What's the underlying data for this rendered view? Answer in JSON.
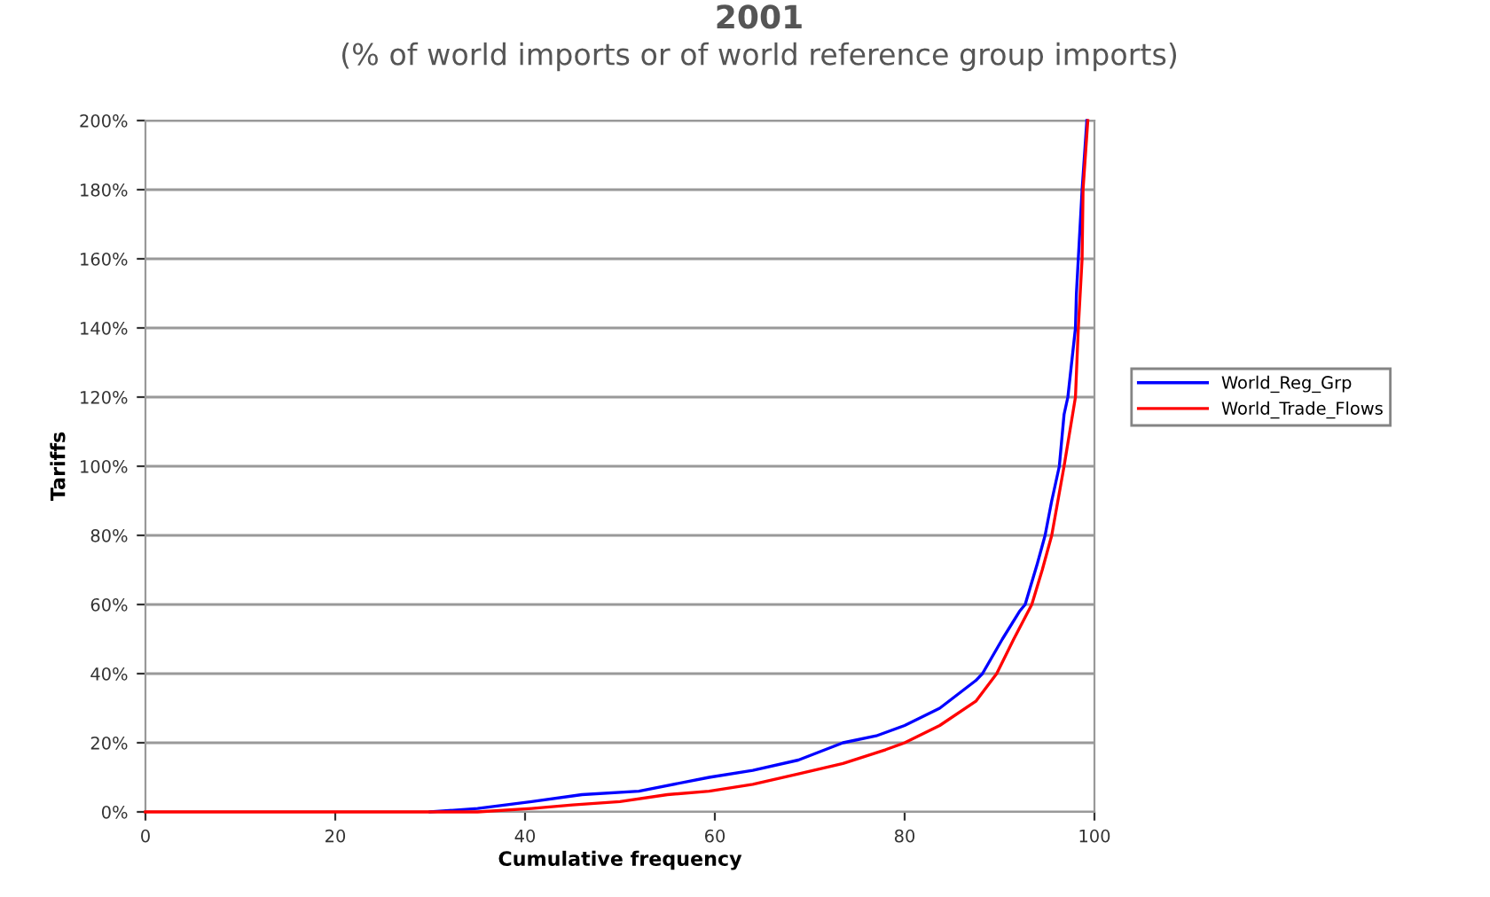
{
  "chart_data": {
    "type": "line",
    "title": "2001",
    "subtitle": "(% of world imports or of world reference group imports)",
    "xlabel": "Cumulative frequency",
    "ylabel": "Tariffs",
    "series": [
      {
        "name": "World_Reg_Grp",
        "color": "#0000ff",
        "x": [
          30,
          35,
          40.7,
          46,
          52,
          59.4,
          64,
          68.8,
          73.5,
          77,
          80,
          83.7,
          87.5,
          88.2,
          90.3,
          92.1,
          92.7,
          94,
          94.8,
          95.5,
          96.3,
          96.8,
          97.2,
          98,
          98.1,
          98.3,
          98.7,
          99.2
        ],
        "values": [
          0,
          1,
          3,
          5,
          6,
          10,
          12,
          15,
          20,
          22,
          25,
          30,
          38,
          40,
          50,
          58,
          60,
          72,
          80,
          90,
          100,
          115,
          120,
          140,
          150,
          160,
          180,
          200
        ]
      },
      {
        "name": "World_Trade_Flows",
        "color": "#ff0000",
        "x": [
          0,
          10,
          20,
          30,
          35,
          40.7,
          45,
          50,
          55,
          59.4,
          64,
          68.8,
          73.5,
          78,
          80,
          83.7,
          87.5,
          89.7,
          91.5,
          93.4,
          94.5,
          95.5,
          96.8,
          98,
          98.3,
          98.7,
          98.8,
          99.3
        ],
        "values": [
          0,
          0,
          0,
          0,
          0,
          1,
          2,
          3,
          5,
          6,
          8,
          11,
          14,
          18,
          20,
          25,
          32,
          40,
          50,
          60,
          70,
          80,
          100,
          120,
          140,
          160,
          180,
          200
        ]
      }
    ],
    "xlim": [
      0,
      100
    ],
    "xticks": [
      0,
      20,
      40,
      60,
      80,
      100
    ],
    "ylim": [
      0,
      200
    ],
    "yticks": [
      {
        "value": 0,
        "label": "0%"
      },
      {
        "value": 20,
        "label": "20%"
      },
      {
        "value": 40,
        "label": "40%"
      },
      {
        "value": 60,
        "label": "60%"
      },
      {
        "value": 80,
        "label": "80%"
      },
      {
        "value": 100,
        "label": "100%"
      },
      {
        "value": 120,
        "label": "120%"
      },
      {
        "value": 140,
        "label": "140%"
      },
      {
        "value": 160,
        "label": "160%"
      },
      {
        "value": 180,
        "label": "180%"
      },
      {
        "value": 200,
        "label": "200%"
      }
    ],
    "grid": "y",
    "legend": "right",
    "marker": "none",
    "line_style": "solid"
  }
}
